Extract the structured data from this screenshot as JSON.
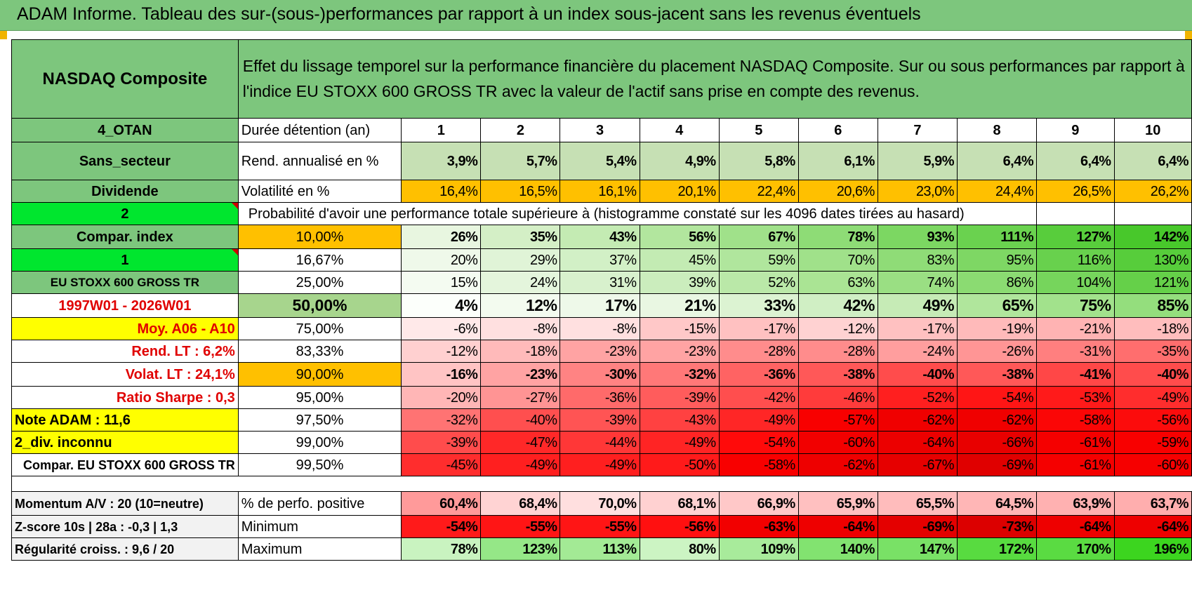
{
  "banner": {
    "title": "ADAM Informe. Tableau des sur-(sous-)performances par rapport à un index sous-jacent sans les revenus éventuels"
  },
  "header": {
    "asset": "NASDAQ Composite",
    "description": "Effet du lissage temporel sur la performance financière du placement NASDAQ Composite. Sur ou sous performances par rapport à l'indice EU STOXX 600 GROSS TR avec la valeur de l'actif sans prise en compte des revenus."
  },
  "side": {
    "otan": "4_OTAN",
    "sector": "Sans_secteur",
    "dividend": "Dividende",
    "flag_2": "2",
    "compar_index": "Compar. index",
    "flag_1": "1",
    "index_name": "EU STOXX 600 GROSS TR",
    "period": "1997W01 - 2026W01",
    "moy": "Moy. A06 - A10",
    "rend_lt": "Rend. LT :    6,2%",
    "volat_lt": "Volat. LT :    24,1%",
    "sharpe": "Ratio Sharpe :     0,3",
    "note": "Note ADAM : 11,6",
    "div": "2_div. inconnu",
    "compar_full": "Compar. EU STOXX 600 GROSS TR"
  },
  "rows": {
    "duration_label": "Durée détention (an)",
    "years": [
      "1",
      "2",
      "3",
      "4",
      "5",
      "6",
      "7",
      "8",
      "9",
      "10"
    ],
    "rend_label": "Rend. annualisé en %",
    "rend": [
      "3,9%",
      "5,7%",
      "5,4%",
      "4,9%",
      "5,8%",
      "6,1%",
      "5,9%",
      "6,4%",
      "6,4%",
      "6,4%"
    ],
    "vol_label": "Volatilité en %",
    "vol": [
      "16,4%",
      "16,5%",
      "16,1%",
      "20,1%",
      "22,4%",
      "20,6%",
      "23,0%",
      "24,4%",
      "26,5%",
      "26,2%"
    ],
    "prob_title": "Probabilité d'avoir une performance totale supérieure à (histogramme constaté sur les 4096 dates tirées au hasard)"
  },
  "probabilities": [
    {
      "p": "10,00%",
      "v": [
        "26%",
        "35%",
        "43%",
        "56%",
        "67%",
        "78%",
        "93%",
        "111%",
        "127%",
        "142%"
      ]
    },
    {
      "p": "16,67%",
      "v": [
        "20%",
        "29%",
        "37%",
        "45%",
        "59%",
        "70%",
        "83%",
        "95%",
        "116%",
        "130%"
      ]
    },
    {
      "p": "25,00%",
      "v": [
        "15%",
        "24%",
        "31%",
        "39%",
        "52%",
        "63%",
        "74%",
        "86%",
        "104%",
        "121%"
      ]
    },
    {
      "p": "50,00%",
      "v": [
        "4%",
        "12%",
        "17%",
        "21%",
        "33%",
        "42%",
        "49%",
        "65%",
        "75%",
        "85%"
      ]
    },
    {
      "p": "75,00%",
      "v": [
        "-6%",
        "-8%",
        "-8%",
        "-15%",
        "-17%",
        "-12%",
        "-17%",
        "-19%",
        "-21%",
        "-18%"
      ]
    },
    {
      "p": "83,33%",
      "v": [
        "-12%",
        "-18%",
        "-23%",
        "-23%",
        "-28%",
        "-28%",
        "-24%",
        "-26%",
        "-31%",
        "-35%"
      ]
    },
    {
      "p": "90,00%",
      "v": [
        "-16%",
        "-23%",
        "-30%",
        "-32%",
        "-36%",
        "-38%",
        "-40%",
        "-38%",
        "-41%",
        "-40%"
      ]
    },
    {
      "p": "95,00%",
      "v": [
        "-20%",
        "-27%",
        "-36%",
        "-39%",
        "-42%",
        "-46%",
        "-52%",
        "-54%",
        "-53%",
        "-49%"
      ]
    },
    {
      "p": "97,50%",
      "v": [
        "-32%",
        "-40%",
        "-39%",
        "-43%",
        "-49%",
        "-57%",
        "-62%",
        "-62%",
        "-58%",
        "-56%"
      ]
    },
    {
      "p": "99,00%",
      "v": [
        "-39%",
        "-47%",
        "-44%",
        "-49%",
        "-54%",
        "-60%",
        "-64%",
        "-66%",
        "-61%",
        "-59%"
      ]
    },
    {
      "p": "99,50%",
      "v": [
        "-45%",
        "-49%",
        "-49%",
        "-50%",
        "-58%",
        "-62%",
        "-67%",
        "-69%",
        "-61%",
        "-60%"
      ]
    }
  ],
  "bottom": {
    "momentum": "Momentum A/V : 20 (10=neutre)",
    "zscore": "Z-score 10s | 28a : -0,3 | 1,3",
    "regularite": "Régularité croiss. : 9,6 / 20",
    "pos_label": "% de perfo. positive",
    "pos": [
      "60,4%",
      "68,4%",
      "70,0%",
      "68,1%",
      "66,9%",
      "65,9%",
      "65,5%",
      "64,5%",
      "63,9%",
      "63,7%"
    ],
    "min_label": "Minimum",
    "min": [
      "-54%",
      "-55%",
      "-55%",
      "-56%",
      "-63%",
      "-64%",
      "-69%",
      "-73%",
      "-64%",
      "-64%"
    ],
    "max_label": "Maximum",
    "max": [
      "78%",
      "123%",
      "113%",
      "80%",
      "109%",
      "140%",
      "147%",
      "172%",
      "170%",
      "196%"
    ]
  },
  "colors": {
    "header_green": "#7dc67d",
    "bright_green": "#00e62e",
    "orange": "#ffc000",
    "yellow": "#ffff00",
    "red_text": "#e00000"
  }
}
